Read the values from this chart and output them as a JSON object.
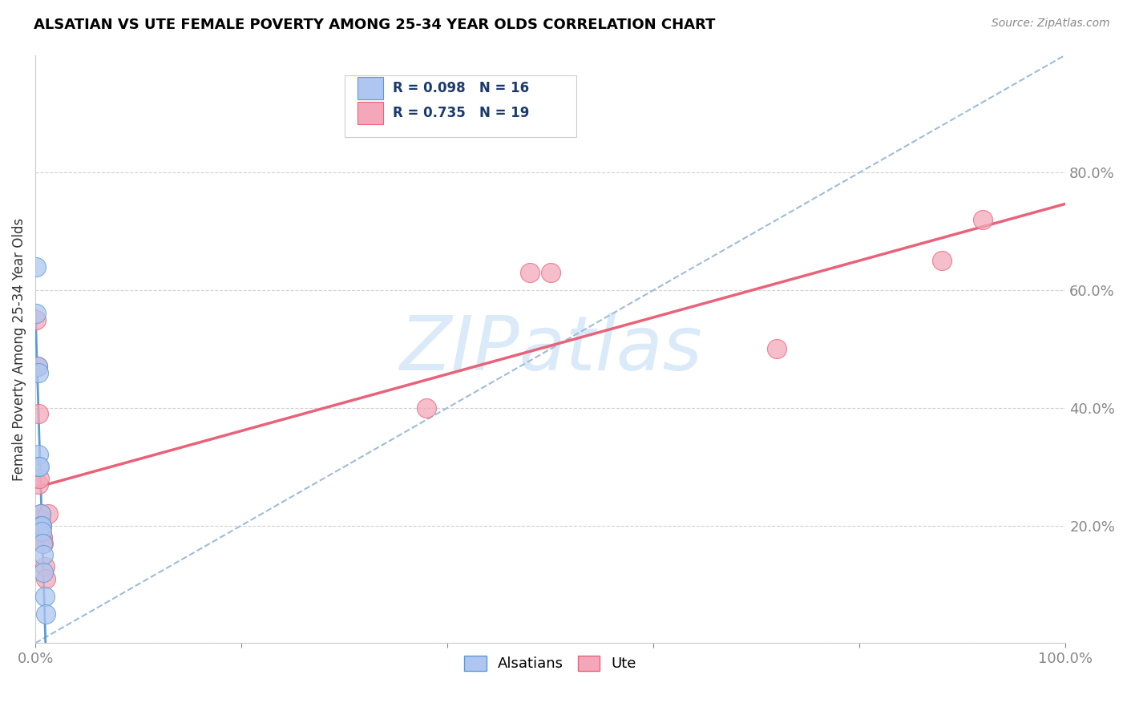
{
  "title": "ALSATIAN VS UTE FEMALE POVERTY AMONG 25-34 YEAR OLDS CORRELATION CHART",
  "source": "Source: ZipAtlas.com",
  "ylabel": "Female Poverty Among 25-34 Year Olds",
  "xlim": [
    0,
    1.0
  ],
  "ylim": [
    0,
    1.0
  ],
  "alsatians_R": 0.098,
  "alsatians_N": 16,
  "ute_R": 0.735,
  "ute_N": 19,
  "alsatians_color": "#aec6f0",
  "ute_color": "#f4a7b9",
  "alsatians_line_color": "#5b9bd5",
  "ute_line_color": "#e8637a",
  "dashed_line_color": "#a0bcd8",
  "watermark_color": "#daeaf8",
  "alsatians_x": [
    0.001,
    0.001,
    0.002,
    0.003,
    0.003,
    0.003,
    0.004,
    0.005,
    0.005,
    0.006,
    0.006,
    0.007,
    0.008,
    0.008,
    0.009,
    0.01
  ],
  "alsatians_y": [
    0.64,
    0.56,
    0.47,
    0.46,
    0.32,
    0.3,
    0.3,
    0.22,
    0.2,
    0.2,
    0.19,
    0.17,
    0.15,
    0.12,
    0.08,
    0.05
  ],
  "ute_x": [
    0.001,
    0.002,
    0.003,
    0.003,
    0.004,
    0.005,
    0.005,
    0.006,
    0.007,
    0.008,
    0.009,
    0.01,
    0.012,
    0.38,
    0.48,
    0.5,
    0.72,
    0.88,
    0.92
  ],
  "ute_y": [
    0.55,
    0.47,
    0.39,
    0.27,
    0.28,
    0.22,
    0.21,
    0.2,
    0.18,
    0.17,
    0.13,
    0.11,
    0.22,
    0.4,
    0.63,
    0.63,
    0.5,
    0.65,
    0.72
  ],
  "ute_line_start_y": 0.26,
  "ute_line_end_y": 0.8,
  "dashed_line_start_x": 0.0,
  "dashed_line_start_y": 0.0,
  "dashed_line_end_x": 1.0,
  "dashed_line_end_y": 1.0
}
